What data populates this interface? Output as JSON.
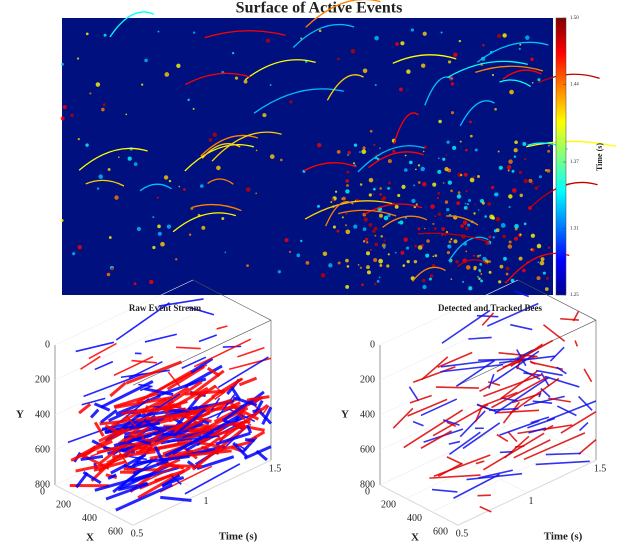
{
  "chart_data": [
    {
      "type": "heatmap",
      "title": "Surface of Active Events",
      "colorbar": {
        "label": "Time (s)",
        "lim": [
          1.25,
          1.5
        ],
        "ticks": [
          1.25,
          1.31,
          1.37,
          1.44,
          {
            "value": 1.5,
            "label": "1.50"
          }
        ]
      }
    },
    {
      "type": "scatter3d",
      "title": "Raw Event Stream",
      "xlabel": "X",
      "ylabel": "Y",
      "zlabel": "Time (s)",
      "xlim": [
        0,
        600
      ],
      "ylim": [
        0,
        800
      ],
      "zlim": [
        0.5,
        1.5
      ],
      "xticks": [
        0,
        200,
        400,
        600
      ],
      "yticks": [
        0,
        200,
        400,
        600,
        800
      ],
      "zticks": [
        0.5,
        1,
        1.5
      ],
      "colors": [
        "#ff0000",
        "#0000ff"
      ]
    },
    {
      "type": "scatter3d",
      "title": "Detected and Tracked Bees",
      "xlabel": "X",
      "ylabel": "Y",
      "zlabel": "Time (s)",
      "xlim": [
        0,
        600
      ],
      "ylim": [
        0,
        800
      ],
      "zlim": [
        0.5,
        1.5
      ],
      "xticks": [
        0,
        200,
        400,
        600
      ],
      "yticks": [
        0,
        200,
        400,
        600,
        800
      ],
      "zticks": [
        0.5,
        1,
        1.5
      ],
      "colors": [
        "#dd0000",
        "#1010ee"
      ]
    }
  ]
}
